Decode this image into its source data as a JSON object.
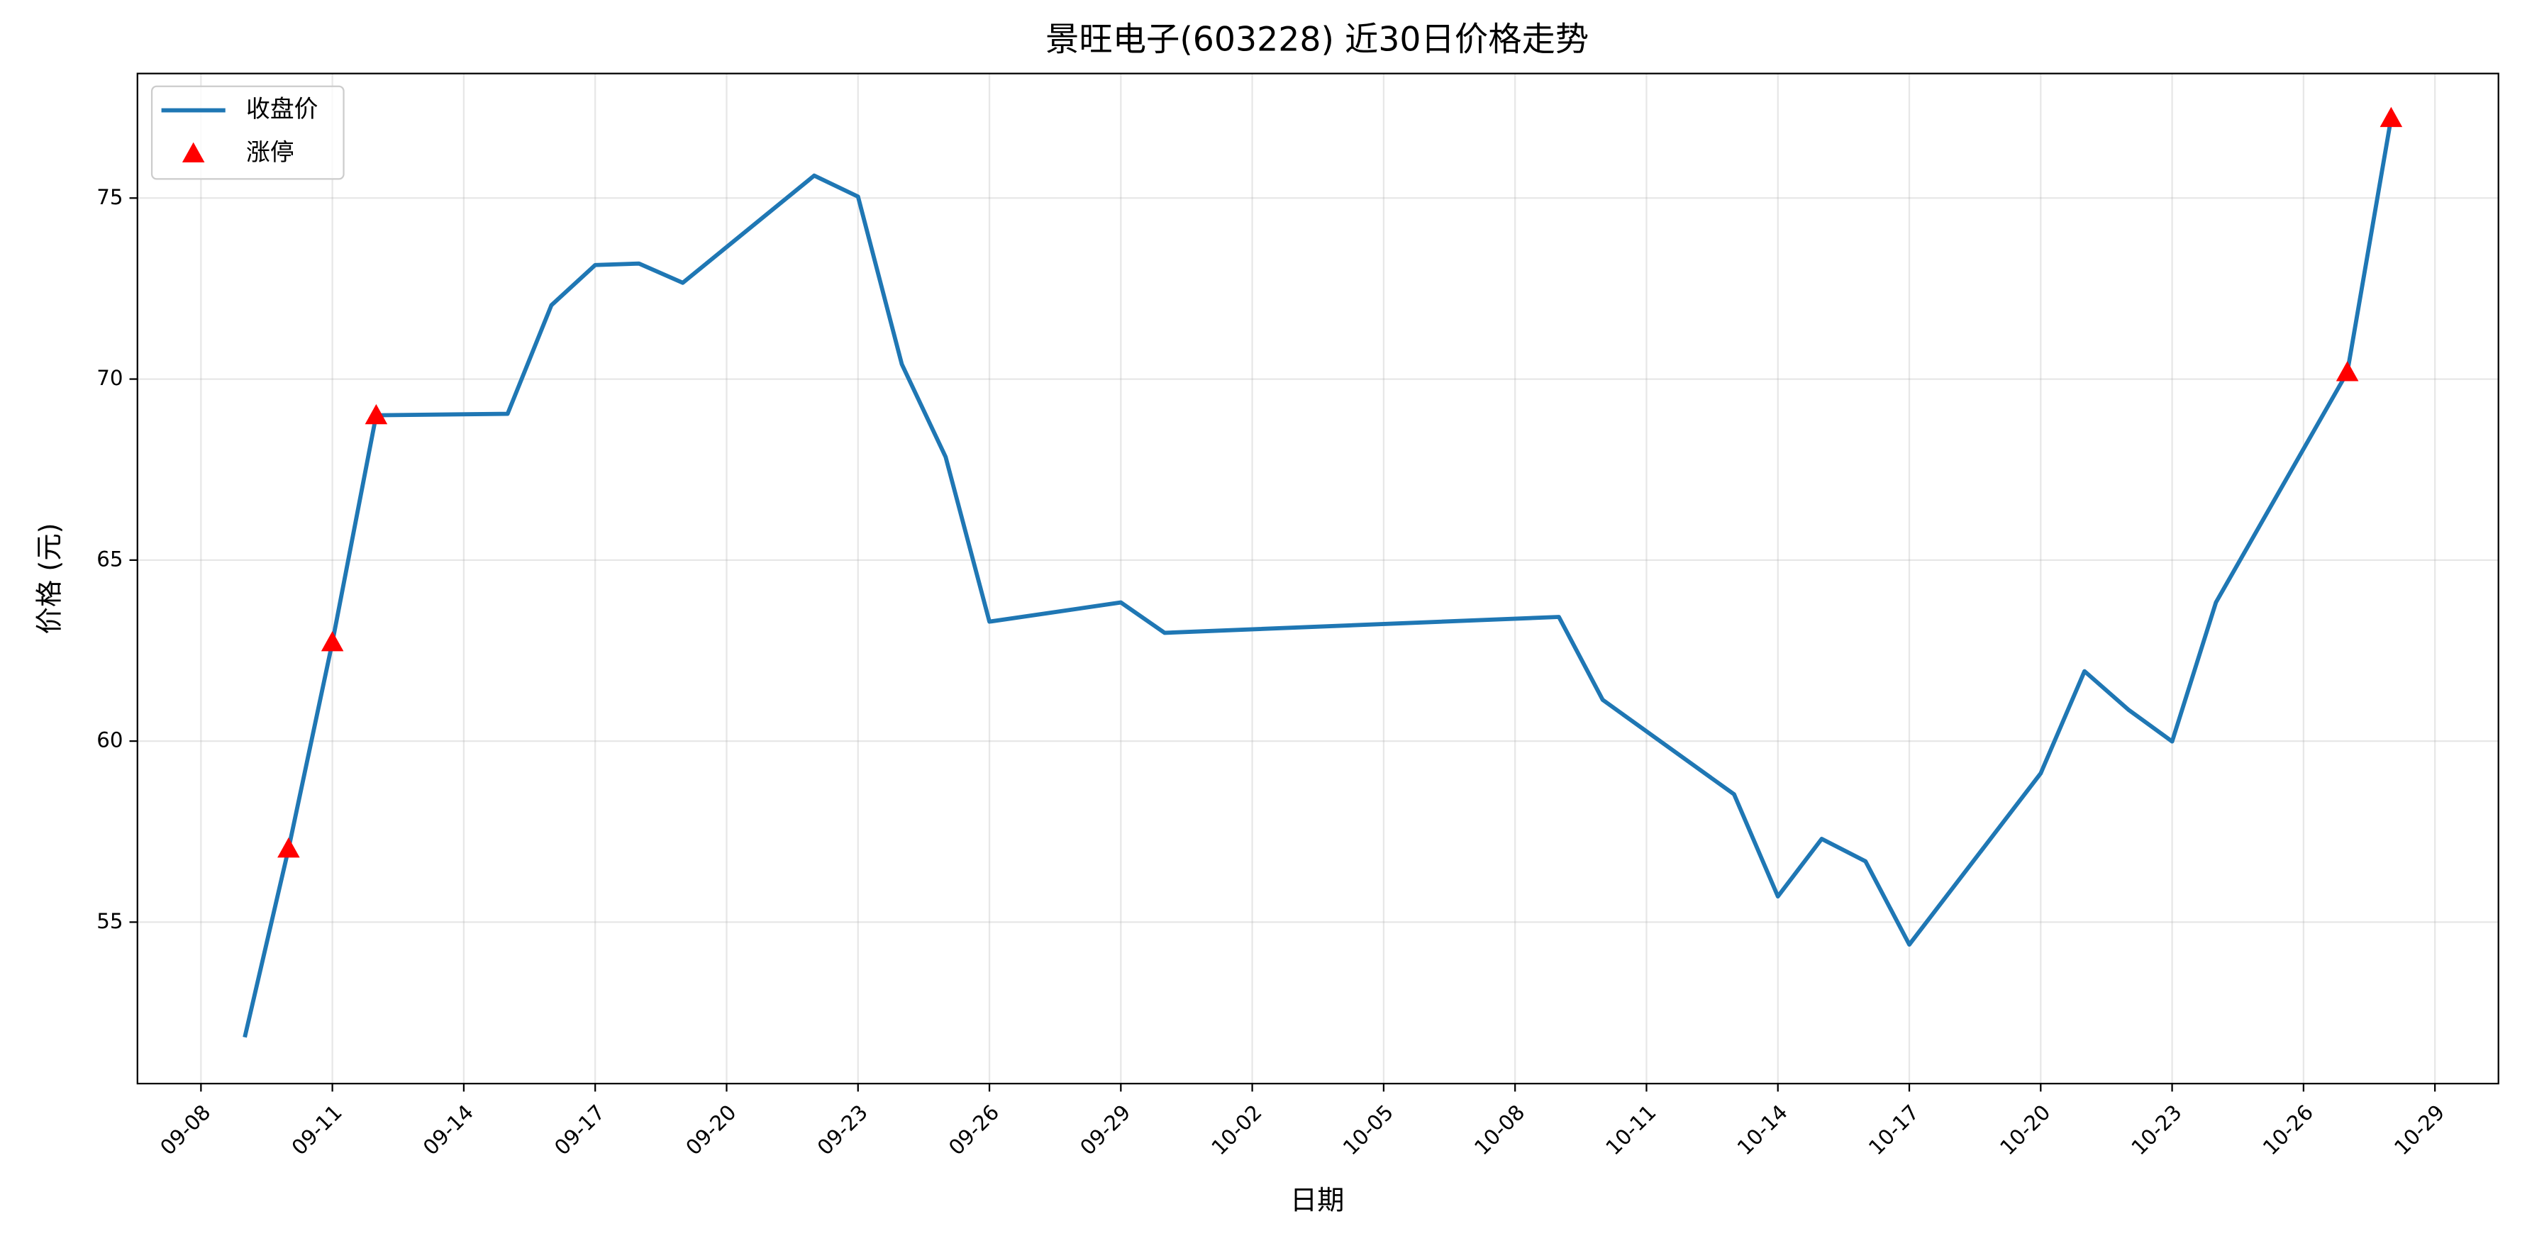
{
  "chart_data": {
    "type": "line",
    "title": "景旺电子(603228) 近30日价格走势",
    "xlabel": "日期",
    "ylabel": "价格 (元)",
    "ylim": [
      50.54,
      78.44
    ],
    "yticks": [
      55,
      60,
      65,
      70,
      75
    ],
    "xticks": [
      "09-08",
      "09-11",
      "09-14",
      "09-17",
      "09-20",
      "09-23",
      "09-26",
      "09-29",
      "10-02",
      "10-05",
      "10-08",
      "10-11",
      "10-14",
      "10-17",
      "10-20",
      "10-23",
      "10-26",
      "10-29"
    ],
    "grid": true,
    "legend": "upper left",
    "series": [
      {
        "name": "收盘价",
        "type": "line",
        "color": "#1f77b4",
        "x": [
          "09-09",
          "09-10",
          "09-11",
          "09-12",
          "09-15",
          "09-16",
          "09-17",
          "09-18",
          "09-19",
          "09-22",
          "09-23",
          "09-24",
          "09-25",
          "09-26",
          "09-29",
          "09-30",
          "10-09",
          "10-10",
          "10-13",
          "10-14",
          "10-15",
          "10-16",
          "10-17",
          "10-20",
          "10-21",
          "10-22",
          "10-23",
          "10-24",
          "10-27",
          "10-28"
        ],
        "values": [
          51.82,
          57.03,
          62.73,
          69.0,
          69.04,
          72.04,
          73.15,
          73.19,
          72.66,
          75.62,
          75.04,
          70.41,
          67.85,
          63.3,
          63.83,
          62.99,
          63.43,
          61.14,
          58.53,
          55.71,
          57.3,
          56.68,
          54.38,
          59.11,
          61.93,
          60.87,
          59.99,
          63.83,
          70.19,
          77.21
        ]
      },
      {
        "name": "涨停",
        "type": "scatter",
        "color": "#ff0000",
        "x": [
          "09-10",
          "09-11",
          "09-12",
          "10-27",
          "10-28"
        ],
        "values": [
          57.03,
          62.73,
          69.0,
          70.19,
          77.21
        ]
      }
    ]
  }
}
